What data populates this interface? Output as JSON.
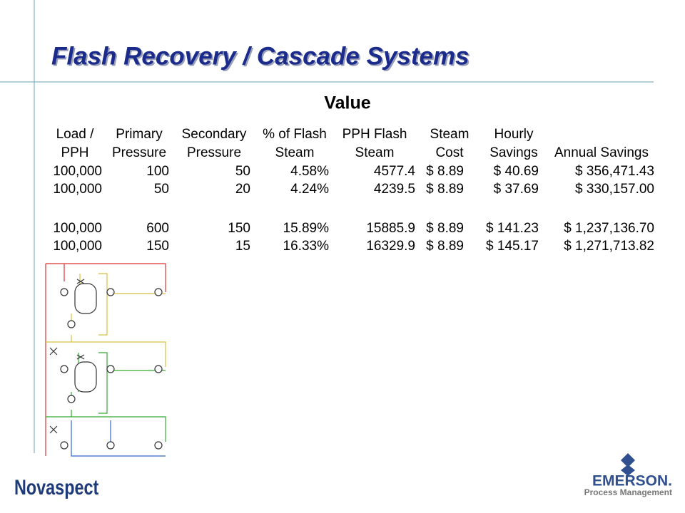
{
  "header": {
    "title": "Flash Recovery / Cascade Systems",
    "subtitle": "Value"
  },
  "table": {
    "columns": [
      [
        "Load /",
        "PPH"
      ],
      [
        "Primary",
        "Pressure"
      ],
      [
        "Secondary",
        "Pressure"
      ],
      [
        "% of Flash",
        "Steam"
      ],
      [
        "PPH Flash",
        "Steam"
      ],
      [
        "Steam",
        "Cost"
      ],
      [
        "Hourly",
        "Savings"
      ],
      [
        "Annual Savings"
      ]
    ],
    "groups": [
      [
        [
          "100,000",
          "100",
          "50",
          "4.58%",
          "4577.4",
          "$ 8.89",
          "$ 40.69",
          "$ 356,471.43"
        ],
        [
          "100,000",
          "50",
          "20",
          "4.24%",
          "4239.5",
          "$ 8.89",
          "$ 37.69",
          "$ 330,157.00"
        ]
      ],
      [
        [
          "100,000",
          "600",
          "150",
          "15.89%",
          "15885.9",
          "$ 8.89",
          "$ 141.23",
          "$ 1,237,136.70"
        ],
        [
          "100,000",
          "150",
          "15",
          "16.33%",
          "16329.9",
          "$ 8.89",
          "$ 145.17",
          "$ 1,271,713.82"
        ]
      ]
    ]
  },
  "footer": {
    "left_logo": "Novaspect",
    "right_logo": "EMERSON.",
    "right_tagline": "Process Management"
  }
}
